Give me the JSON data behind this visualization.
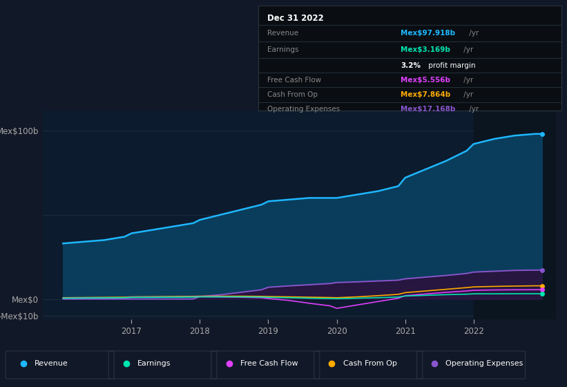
{
  "bg_color": "#111827",
  "plot_bg_color": "#0d1b2e",
  "highlight_bg": "#0a1520",
  "grid_color": "#1e3040",
  "title_date": "Dec 31 2022",
  "ylabel_top": "Mex$100b",
  "ylabel_mid": "Mex$0",
  "ylabel_bot": "-Mex$10b",
  "ylim": [
    -12,
    112
  ],
  "xticks": [
    2017,
    2018,
    2019,
    2020,
    2021,
    2022
  ],
  "xlim_start": 2015.7,
  "xlim_end": 2023.2,
  "years": [
    2016.0,
    2016.3,
    2016.6,
    2016.9,
    2017.0,
    2017.3,
    2017.6,
    2017.9,
    2018.0,
    2018.3,
    2018.6,
    2018.9,
    2019.0,
    2019.3,
    2019.6,
    2019.9,
    2020.0,
    2020.3,
    2020.6,
    2020.9,
    2021.0,
    2021.3,
    2021.6,
    2021.9,
    2022.0,
    2022.3,
    2022.6,
    2022.9,
    2023.0
  ],
  "revenue": [
    33,
    34,
    35,
    37,
    39,
    41,
    43,
    45,
    47,
    50,
    53,
    56,
    58,
    59,
    60,
    60,
    60,
    62,
    64,
    67,
    72,
    77,
    82,
    88,
    92,
    95,
    97,
    98,
    98
  ],
  "earnings": [
    0.5,
    0.6,
    0.7,
    0.8,
    1.0,
    1.0,
    1.1,
    1.2,
    1.3,
    1.3,
    1.3,
    1.2,
    1.0,
    0.8,
    0.5,
    0.3,
    0.2,
    0.5,
    0.8,
    1.2,
    1.8,
    2.2,
    2.6,
    2.9,
    3.1,
    3.1,
    3.15,
    3.169,
    3.169
  ],
  "free_cash_flow": [
    0.5,
    0.6,
    0.7,
    0.8,
    1.0,
    1.1,
    1.2,
    1.3,
    1.4,
    1.3,
    1.1,
    0.8,
    0.3,
    -0.8,
    -2.5,
    -4.0,
    -5.5,
    -3.5,
    -1.5,
    0.5,
    2.0,
    3.0,
    4.0,
    4.8,
    5.2,
    5.4,
    5.5,
    5.556,
    5.556
  ],
  "cash_from_op": [
    0.8,
    0.9,
    1.0,
    1.1,
    1.3,
    1.4,
    1.5,
    1.6,
    1.7,
    1.7,
    1.7,
    1.6,
    1.5,
    1.3,
    1.1,
    0.9,
    0.8,
    1.3,
    2.0,
    2.8,
    3.8,
    4.8,
    5.8,
    6.8,
    7.2,
    7.5,
    7.7,
    7.864,
    7.864
  ],
  "op_expenses": [
    0,
    0,
    0,
    0,
    0,
    0,
    0,
    0,
    1.5,
    2.5,
    4.0,
    5.5,
    7.0,
    7.8,
    8.5,
    9.2,
    9.8,
    10.2,
    10.7,
    11.2,
    12.0,
    13.0,
    14.0,
    15.2,
    16.0,
    16.5,
    17.0,
    17.168,
    17.168
  ],
  "revenue_color": "#1eb8ff",
  "revenue_fill": "#0a3d5c",
  "earnings_color": "#00e5b0",
  "fcf_color": "#e040fb",
  "cashop_color": "#ffaa00",
  "opex_color": "#8855cc",
  "opex_fill": "#261640",
  "highlight_x": 2022.0,
  "infobox_label_color": "#888888",
  "infobox_val_color_revenue": "#1eb8ff",
  "infobox_val_color_earnings": "#00e5b0",
  "infobox_val_color_fcf": "#e040fb",
  "infobox_val_color_cashop": "#ffaa00",
  "infobox_val_color_opex": "#8855cc",
  "legend_entries": [
    {
      "label": "Revenue",
      "color": "#1eb8ff"
    },
    {
      "label": "Earnings",
      "color": "#00e5b0"
    },
    {
      "label": "Free Cash Flow",
      "color": "#e040fb"
    },
    {
      "label": "Cash From Op",
      "color": "#ffaa00"
    },
    {
      "label": "Operating Expenses",
      "color": "#8855cc"
    }
  ]
}
